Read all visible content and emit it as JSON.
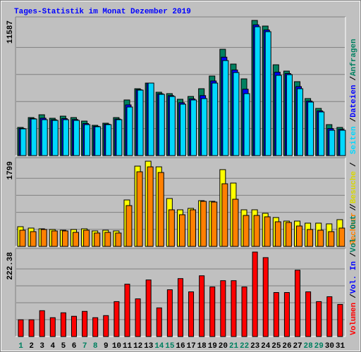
{
  "title": "Tages-Statistik im Monat Dezember 2019",
  "legend_separator": "/",
  "chart_data": [
    {
      "type": "bar",
      "ylim": [
        0,
        11587
      ],
      "yticks": [
        11587
      ],
      "grid_divisions": 5,
      "series": [
        {
          "name": "Anfragen",
          "color": "#008060",
          "values": [
            2414,
            3259,
            3500,
            3199,
            3380,
            3259,
            2957,
            2595,
            2776,
            3259,
            4768,
            5733,
            6216,
            5432,
            5311,
            4828,
            5069,
            5733,
            6820,
            9113,
            7846,
            6578,
            11587,
            11104,
            7785,
            7242,
            6337,
            4888,
            4043,
            2655,
            2414
          ]
        },
        {
          "name": "Dateien",
          "color": "#0000ff",
          "values": [
            2329,
            3174,
            3205,
            3072,
            3169,
            3090,
            2746,
            2510,
            2691,
            3132,
            4345,
            5649,
            6216,
            5305,
            5142,
            4533,
            4858,
            5142,
            6397,
            8437,
            7339,
            5691,
            11207,
            10767,
            7152,
            7031,
            5914,
            4677,
            3832,
            2318,
            2245
          ]
        },
        {
          "name": "Seiten",
          "color": "#00d8ff",
          "values": [
            2293,
            3138,
            3078,
            3018,
            3078,
            3018,
            2655,
            2474,
            2655,
            3078,
            4164,
            5613,
            6216,
            5250,
            5069,
            4406,
            4768,
            4888,
            6216,
            8147,
            7121,
            5311,
            11044,
            10622,
            6880,
            6940,
            5733,
            4587,
            3742,
            2173,
            2173
          ]
        }
      ]
    },
    {
      "type": "bar",
      "ylim": [
        0,
        1799
      ],
      "yticks": [
        1799
      ],
      "grid_divisions": 5,
      "series": [
        {
          "name": "Besuche",
          "color": "#ffff00",
          "text_color": "#d8d800",
          "values": [
            416,
            387,
            372,
            357,
            342,
            357,
            372,
            327,
            342,
            327,
            981,
            1695,
            1799,
            1680,
            1011,
            773,
            803,
            966,
            952,
            1621,
            1338,
            773,
            773,
            699,
            610,
            535,
            535,
            491,
            491,
            476,
            565
          ]
        },
        {
          "name": "Rechner",
          "color": "#ff8000",
          "values": [
            342,
            312,
            357,
            327,
            327,
            297,
            342,
            283,
            297,
            283,
            862,
            1576,
            1680,
            1561,
            773,
            669,
            773,
            952,
            937,
            1323,
            996,
            654,
            654,
            625,
            520,
            506,
            431,
            357,
            342,
            312,
            387
          ]
        }
      ]
    },
    {
      "type": "bar",
      "ylim": [
        0,
        222.38
      ],
      "yticks": [
        222.38
      ],
      "grid_divisions": 5,
      "categories": [
        "1",
        "2",
        "3",
        "4",
        "5",
        "6",
        "7",
        "8",
        "9",
        "10",
        "11",
        "12",
        "13",
        "14",
        "15",
        "16",
        "17",
        "18",
        "19",
        "20",
        "21",
        "22",
        "23",
        "24",
        "25",
        "26",
        "27",
        "28",
        "29",
        "30",
        "31"
      ],
      "category_colors": [
        "#008060",
        "#000000",
        "#000000",
        "#000000",
        "#000000",
        "#000000",
        "#008060",
        "#008060",
        "#000000",
        "#000000",
        "#000000",
        "#000000",
        "#000000",
        "#008060",
        "#008060",
        "#000000",
        "#000000",
        "#000000",
        "#000000",
        "#000000",
        "#008060",
        "#008060",
        "#000000",
        "#000000",
        "#000000",
        "#000000",
        "#000000",
        "#008060",
        "#008060",
        "#000000",
        "#000000"
      ],
      "series": [
        {
          "name": "Volumen",
          "color": "#ff0000",
          "values": [
            44.1,
            44.1,
            68.0,
            49.6,
            62.5,
            53.3,
            66.2,
            49.6,
            55.1,
            91.9,
            137.8,
            99.2,
            148.9,
            75.4,
            123.1,
            152.5,
            117.6,
            159.9,
            130.5,
            147.0,
            147.0,
            130.5,
            222.38,
            207.7,
            115.8,
            115.8,
            174.6,
            117.6,
            91.9,
            104.8,
            84.5
          ]
        }
      ],
      "extra_legend": [
        {
          "name": "Vol. In",
          "color": "#0000ff"
        },
        {
          "name": "Vol. Out",
          "color": "#008060"
        }
      ]
    }
  ]
}
